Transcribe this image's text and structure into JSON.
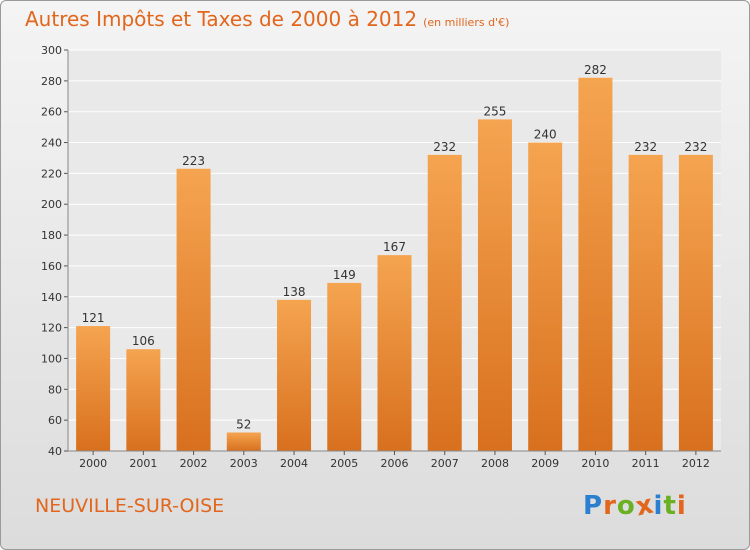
{
  "header": {
    "title": "Autres Impôts et Taxes de 2000 à 2012",
    "unit": "(en milliers d'€)"
  },
  "footer": {
    "commune": "NEUVILLE-SUR-OISE"
  },
  "logo": {
    "letters": [
      {
        "ch": "P",
        "color": "#2a7fd0"
      },
      {
        "ch": "r",
        "color": "#e2661c"
      },
      {
        "ch": "o",
        "color": "#6ab023"
      },
      {
        "ch": "x",
        "color": "#e2661c"
      },
      {
        "ch": "i",
        "color": "#2a7fd0"
      },
      {
        "ch": "t",
        "color": "#6ab023"
      },
      {
        "ch": "i",
        "color": "#e2661c"
      }
    ]
  },
  "colors": {
    "accent": "#e2661c",
    "bar_top": "#f5a450",
    "bar_bottom": "#d8701e"
  },
  "chart_data": {
    "type": "bar",
    "categories": [
      "2000",
      "2001",
      "2002",
      "2003",
      "2004",
      "2005",
      "2006",
      "2007",
      "2008",
      "2009",
      "2010",
      "2011",
      "2012"
    ],
    "values": [
      121,
      106,
      223,
      52,
      138,
      149,
      167,
      232,
      255,
      240,
      282,
      232,
      232
    ],
    "title": "Autres Impôts et Taxes de 2000 à 2012",
    "ylim": [
      40,
      300
    ],
    "yticks": [
      40,
      60,
      80,
      100,
      120,
      140,
      160,
      180,
      200,
      220,
      240,
      260,
      280,
      300
    ],
    "grid": true
  }
}
